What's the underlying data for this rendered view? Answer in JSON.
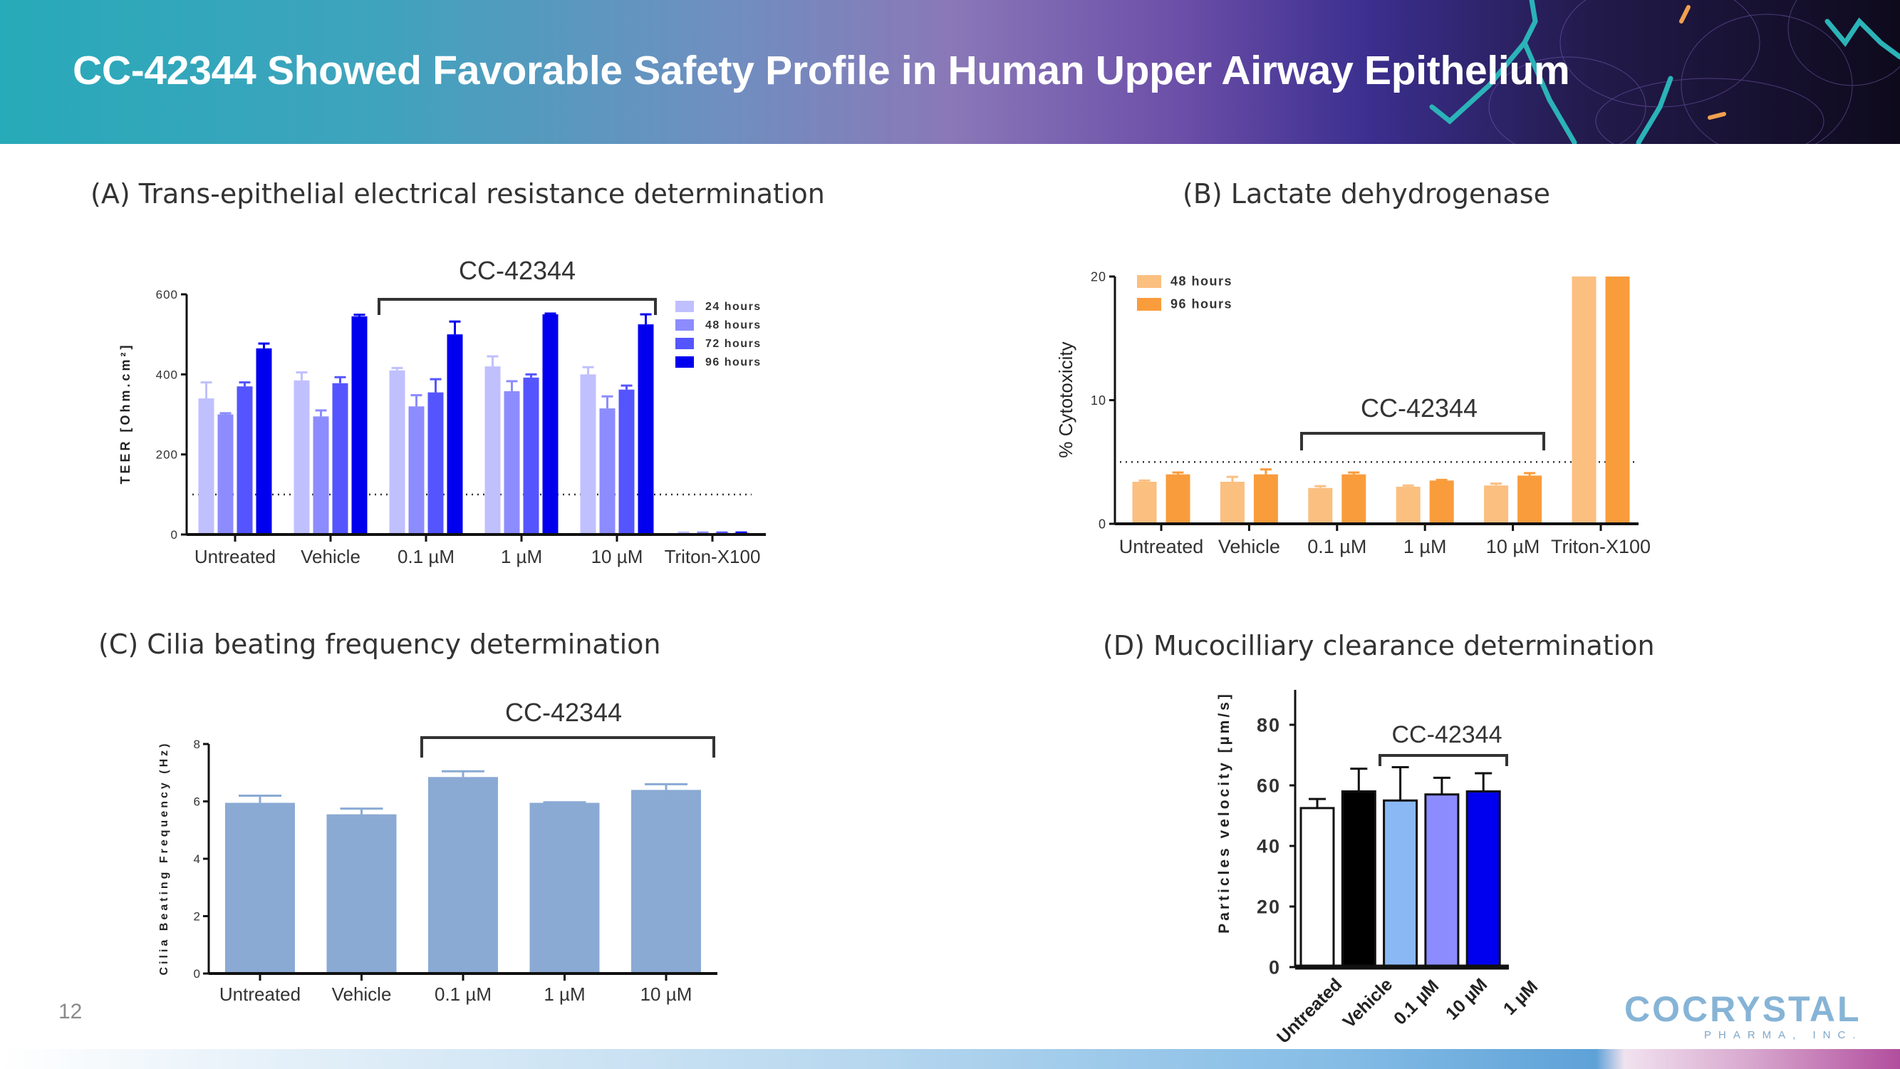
{
  "header": {
    "title": "CC-42344 Showed Favorable Safety Profile in Human Upper Airway Epithelium"
  },
  "panels": {
    "a_title": "(A) Trans-epithelial electrical resistance determination",
    "b_title": "(B) Lactate dehydrogenase",
    "c_title": "(C) Cilia beating frequency determination",
    "d_title": "(D) Mucocilliary clearance determination"
  },
  "footer": {
    "page_number": "12",
    "logo_main": "COCRYSTAL",
    "logo_sub": "PHARMA, INC."
  },
  "colors": {
    "header_start": "#27aab9",
    "header_end": "#0e0a1c",
    "logo": "#86b4d6"
  },
  "chart_data": [
    {
      "type": "bar",
      "annotation": "CC-42344",
      "ylabel": "TEER [Ohm.cm²]",
      "ylim": [
        0,
        600
      ],
      "yticks": [
        0,
        200,
        400,
        600
      ],
      "reference_line": 100,
      "categories": [
        "Untreated",
        "Vehicle",
        "0.1 µM",
        "1 µM",
        "10 µM",
        "Triton-X100"
      ],
      "legend_position": "top-right",
      "series": [
        {
          "name": "24 hours",
          "color": "#c0c0ff",
          "values": [
            340,
            385,
            410,
            420,
            400,
            3
          ],
          "errors": [
            40,
            20,
            6,
            25,
            18,
            2
          ]
        },
        {
          "name": "48 hours",
          "color": "#8c8cff",
          "values": [
            300,
            295,
            320,
            358,
            315,
            3
          ],
          "errors": [
            3,
            15,
            28,
            25,
            30,
            2
          ]
        },
        {
          "name": "72 hours",
          "color": "#5555ff",
          "values": [
            370,
            378,
            355,
            392,
            362,
            4
          ],
          "errors": [
            10,
            15,
            33,
            8,
            10,
            1
          ]
        },
        {
          "name": "96 hours",
          "color": "#0000ee",
          "values": [
            465,
            545,
            500,
            550,
            525,
            4
          ],
          "errors": [
            12,
            4,
            32,
            2,
            25,
            1
          ]
        }
      ]
    },
    {
      "type": "bar",
      "annotation": "CC-42344",
      "ylabel": "% Cytotoxicity",
      "ylim": [
        0,
        20
      ],
      "yticks": [
        0,
        10,
        20
      ],
      "reference_line": 5,
      "categories": [
        "Untreated",
        "Vehicle",
        "0.1 µM",
        "1 µM",
        "10 µM",
        "Triton-X100"
      ],
      "legend_position": "top-left",
      "series": [
        {
          "name": "48 hours",
          "color": "#fbbf80",
          "values": [
            3.4,
            3.4,
            2.9,
            3.0,
            3.1,
            20
          ],
          "errors": [
            0.1,
            0.4,
            0.15,
            0.1,
            0.15,
            0
          ]
        },
        {
          "name": "96 hours",
          "color": "#f99c3c",
          "values": [
            4.0,
            4.0,
            4.0,
            3.5,
            3.9,
            20
          ],
          "errors": [
            0.15,
            0.4,
            0.15,
            0.05,
            0.2,
            0
          ]
        }
      ]
    },
    {
      "type": "bar",
      "annotation": "CC-42344",
      "ylabel": "Cilia Beating Frequency (Hz)",
      "ylim": [
        0,
        8
      ],
      "yticks": [
        0,
        2,
        4,
        6,
        8
      ],
      "categories": [
        "Untreated",
        "Vehicle",
        "0.1 µM",
        "1 µM",
        "10 µM"
      ],
      "series": [
        {
          "color": "#8aaad4",
          "values": [
            5.95,
            5.55,
            6.85,
            5.95,
            6.4
          ],
          "errors": [
            0.25,
            0.2,
            0.2,
            0.02,
            0.2
          ]
        }
      ]
    },
    {
      "type": "bar",
      "annotation": "CC-42344",
      "ylabel": "Particles velocity [µm/s]",
      "ylim": [
        0,
        90
      ],
      "yticks": [
        0,
        20,
        40,
        60,
        80
      ],
      "categories": [
        "Untreated",
        "Vehicle",
        "0.1 µM",
        "10 µM",
        "1 µM"
      ],
      "series": [
        {
          "colors": [
            "#ffffff",
            "#000000",
            "#8ab8f5",
            "#8c8cff",
            "#0000ee"
          ],
          "values": [
            52.5,
            58,
            55,
            57,
            58
          ],
          "errors": [
            3,
            7.5,
            11,
            5.5,
            6
          ]
        }
      ]
    }
  ]
}
